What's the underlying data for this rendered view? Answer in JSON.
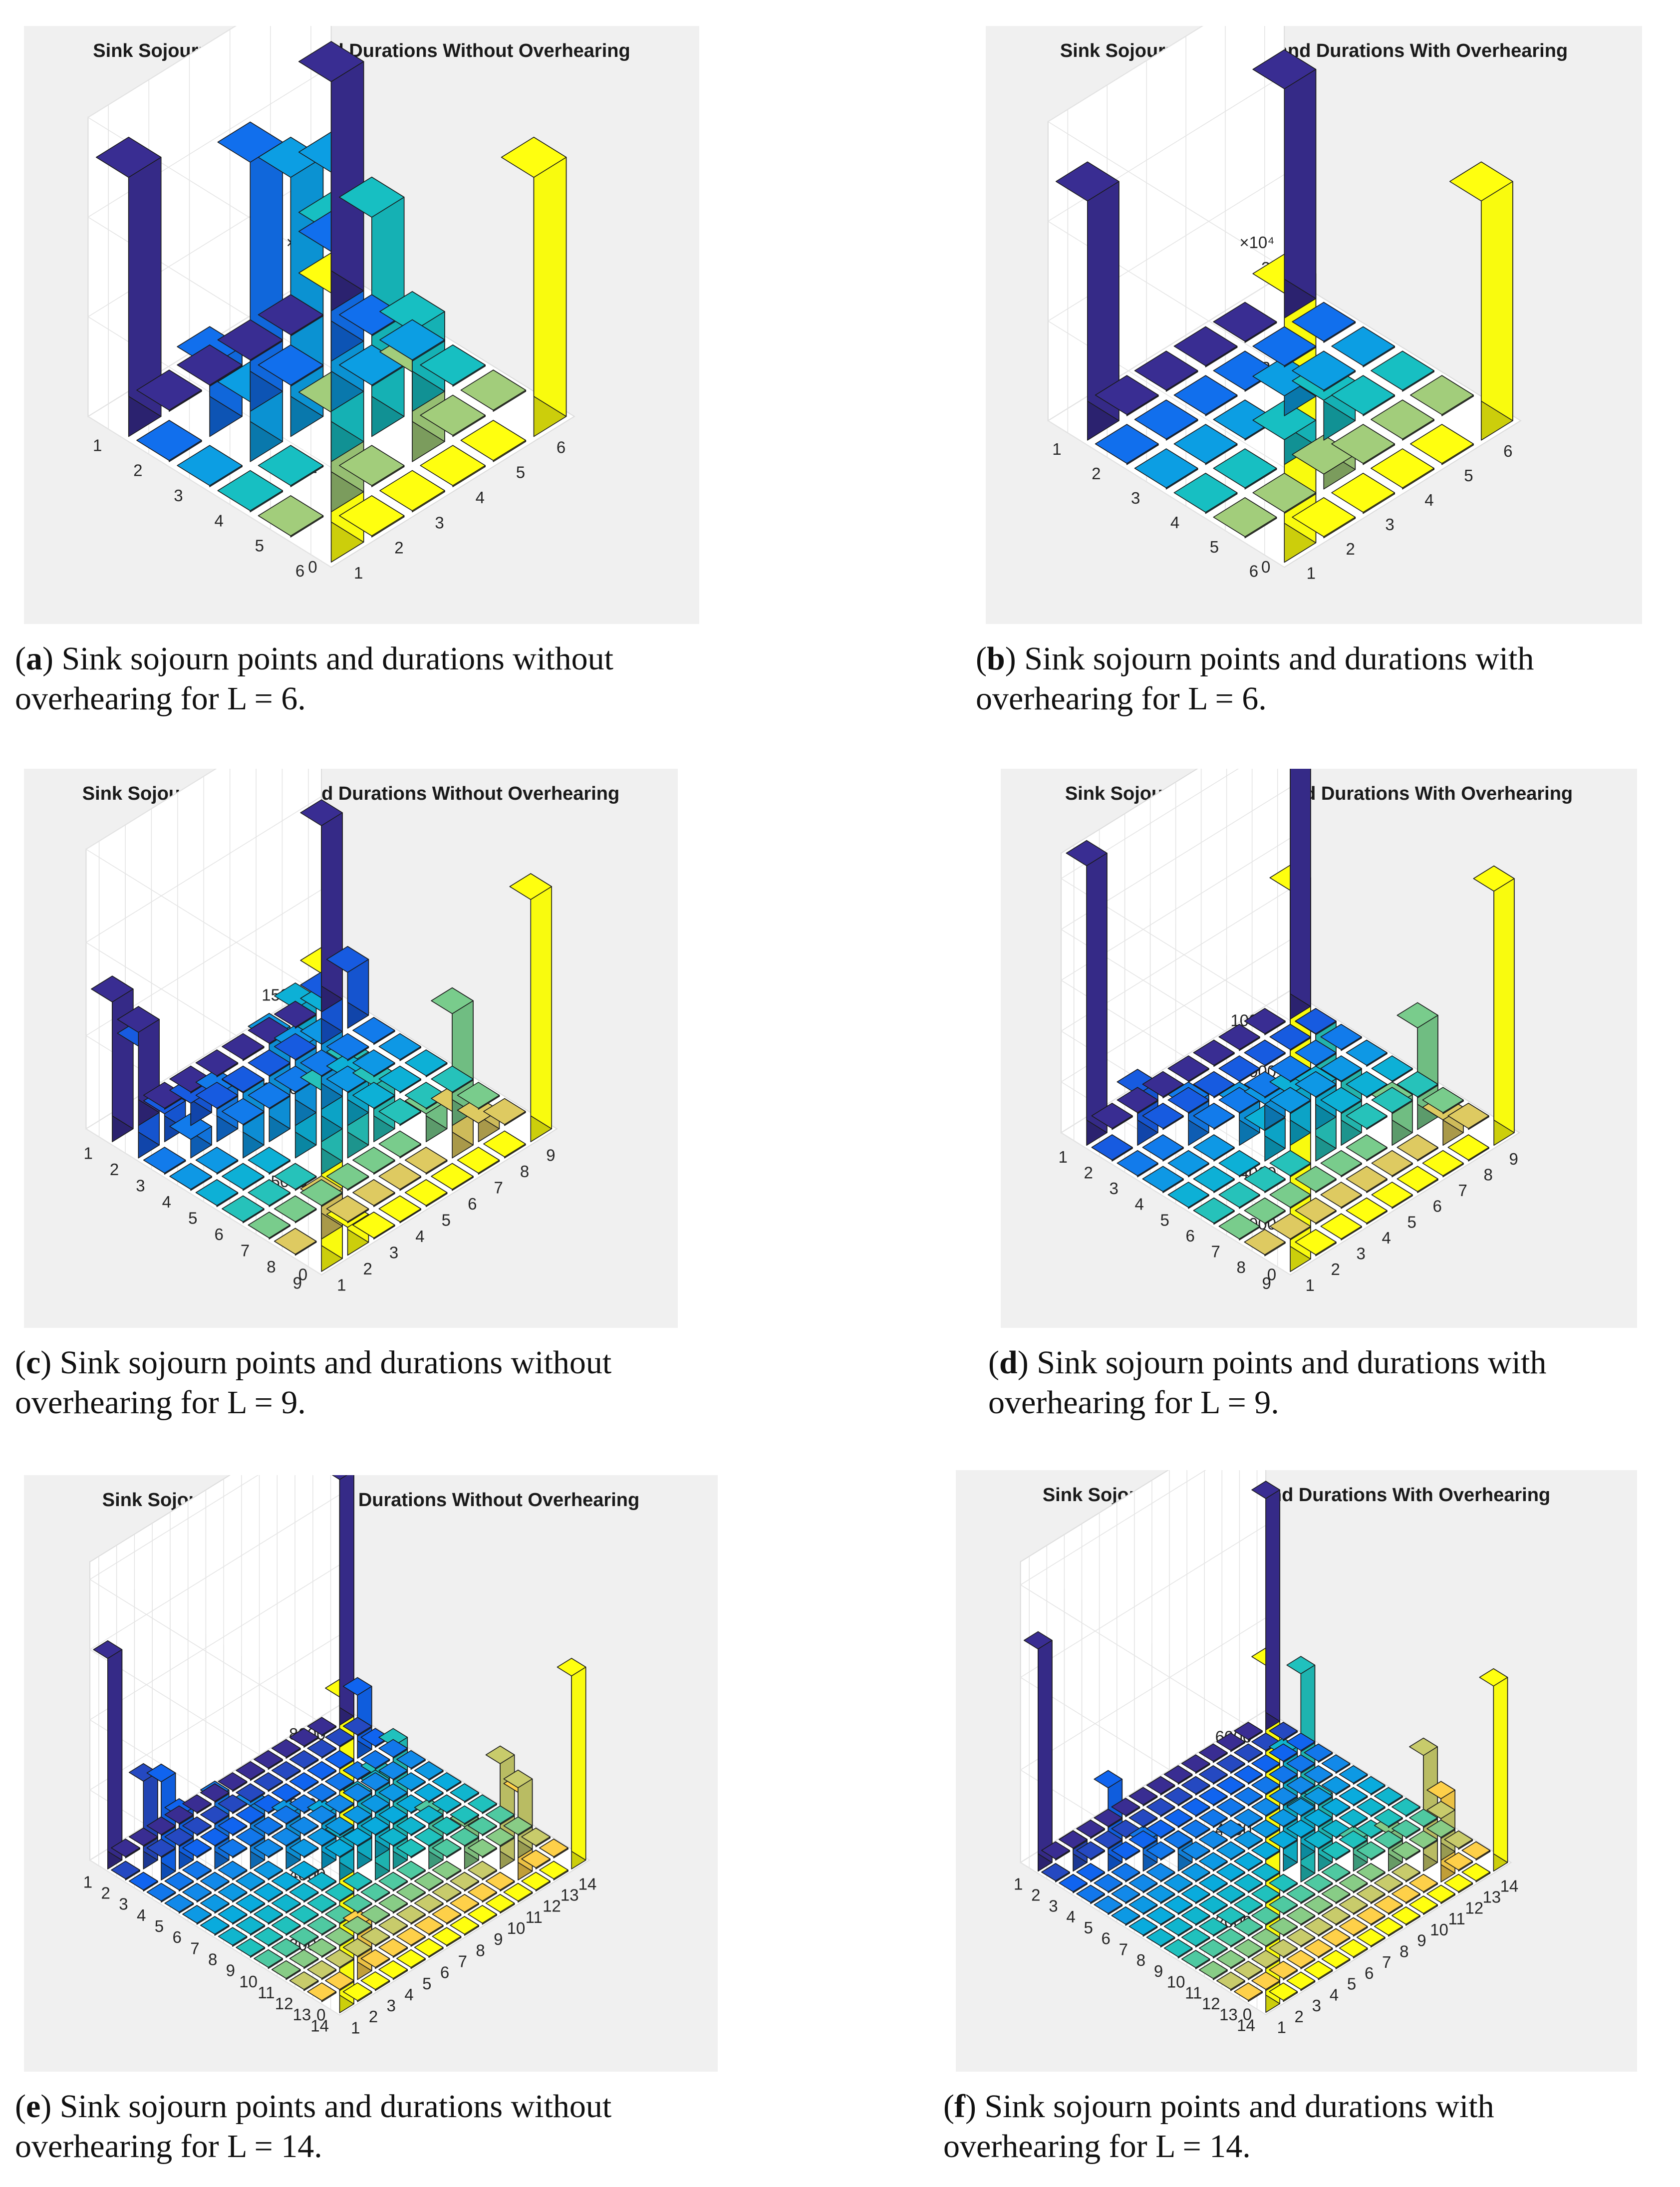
{
  "chart_data": [
    {
      "panel": "a",
      "type": "bar3d",
      "title": "Sink Sojourn Locations and Durations Without Overhearing",
      "caption_letter": "a",
      "caption": "Sink sojourn points and durations without overhearing for L = 6.",
      "L": 6,
      "zmax": 30000,
      "zticks": [
        0,
        10000,
        20000,
        30000
      ],
      "zticklabels": [
        "0",
        "1",
        "2",
        "3"
      ],
      "zexponent": "×10⁴",
      "xticks": [
        "1",
        "2",
        "3",
        "4",
        "5",
        "6"
      ],
      "yticks": [
        "1",
        "2",
        "3",
        "4",
        "5",
        "6"
      ],
      "nonzero": [
        [
          1,
          1,
          26000
        ],
        [
          1,
          6,
          27000
        ],
        [
          6,
          6,
          26000
        ],
        [
          6,
          1,
          23000
        ],
        [
          2,
          2,
          7000
        ],
        [
          2,
          3,
          6000
        ],
        [
          3,
          2,
          25000
        ],
        [
          3,
          3,
          26000
        ],
        [
          2,
          5,
          10000
        ],
        [
          5,
          2,
          11000
        ],
        [
          4,
          4,
          22000
        ],
        [
          4,
          3,
          24000
        ],
        [
          3,
          4,
          23000
        ],
        [
          4,
          5,
          9000
        ],
        [
          5,
          4,
          8000
        ]
      ]
    },
    {
      "panel": "b",
      "type": "bar3d",
      "title": "Sink Sojourn Locations and Durations With Overhearing",
      "caption_letter": "b",
      "caption": "Sink sojourn points and durations with overhearing for L = 6.",
      "L": 6,
      "zmax": 30000,
      "zticks": [
        0,
        10000,
        20000,
        30000
      ],
      "zticklabels": [
        "0",
        "1",
        "2",
        "3"
      ],
      "zexponent": "×10⁴",
      "xticks": [
        "1",
        "2",
        "3",
        "4",
        "5",
        "6"
      ],
      "yticks": [
        "1",
        "2",
        "3",
        "4",
        "5",
        "6"
      ],
      "nonzero": [
        [
          1,
          1,
          24000
        ],
        [
          1,
          6,
          27000
        ],
        [
          6,
          6,
          24000
        ],
        [
          6,
          1,
          23000
        ],
        [
          3,
          4,
          2500
        ],
        [
          4,
          4,
          4000
        ],
        [
          4,
          3,
          2000
        ],
        [
          3,
          5,
          1500
        ]
      ]
    },
    {
      "panel": "c",
      "type": "bar3d",
      "title": "Sink Sojourn Locations and Durations Without Overhearing",
      "caption_letter": "c",
      "caption": "Sink sojourn points and durations without overhearing for L = 9.",
      "L": 9,
      "zmax": 15000,
      "zticks": [
        0,
        5000,
        10000,
        15000
      ],
      "zticklabels": [
        "0",
        "5000",
        "10000",
        "15000"
      ],
      "zexponent": "",
      "xticks": [
        "1",
        "2",
        "3",
        "4",
        "5",
        "6",
        "7",
        "8",
        "9"
      ],
      "yticks": [
        "1",
        "2",
        "3",
        "4",
        "5",
        "6",
        "7",
        "8",
        "9"
      ],
      "nonzero": [
        [
          1,
          1,
          7500
        ],
        [
          1,
          2,
          6000
        ],
        [
          2,
          1,
          5000
        ],
        [
          1,
          9,
          16000
        ],
        [
          9,
          9,
          13000
        ],
        [
          9,
          1,
          10000
        ],
        [
          2,
          2,
          1500
        ],
        [
          3,
          3,
          2500
        ],
        [
          3,
          4,
          3500
        ],
        [
          4,
          4,
          5500
        ],
        [
          4,
          5,
          8000
        ],
        [
          5,
          5,
          7000
        ],
        [
          5,
          6,
          5000
        ],
        [
          6,
          6,
          3000
        ],
        [
          4,
          6,
          4500
        ],
        [
          6,
          4,
          3500
        ],
        [
          7,
          7,
          1500
        ],
        [
          8,
          8,
          1000
        ],
        [
          6,
          5,
          2500
        ],
        [
          5,
          4,
          4000
        ],
        [
          8,
          7,
          6000
        ],
        [
          7,
          8,
          2500
        ],
        [
          2,
          3,
          1000
        ],
        [
          3,
          2,
          1200
        ],
        [
          8,
          2,
          2500
        ],
        [
          2,
          8,
          2000
        ],
        [
          9,
          2,
          3000
        ],
        [
          2,
          9,
          1500
        ]
      ]
    },
    {
      "panel": "d",
      "type": "bar3d",
      "title": "Sink Sojourn Locations and Durations With Overhearing",
      "caption_letter": "d",
      "caption": "Sink sojourn points and durations with overhearing for L = 9.",
      "L": 9,
      "zmax": 11000,
      "zticks": [
        0,
        2000,
        4000,
        6000,
        8000,
        10000
      ],
      "zticklabels": [
        "0",
        "2000",
        "4000",
        "6000",
        "8000",
        "10000"
      ],
      "zexponent": "",
      "xticks": [
        "1",
        "2",
        "3",
        "4",
        "5",
        "6",
        "7",
        "8",
        "9"
      ],
      "yticks": [
        "1",
        "2",
        "3",
        "4",
        "5",
        "6",
        "7",
        "8",
        "9"
      ],
      "nonzero": [
        [
          1,
          1,
          11000
        ],
        [
          1,
          9,
          15000
        ],
        [
          9,
          9,
          10000
        ],
        [
          9,
          1,
          11000
        ],
        [
          2,
          2,
          2000
        ],
        [
          3,
          3,
          1500
        ],
        [
          4,
          4,
          1500
        ],
        [
          5,
          5,
          2000
        ],
        [
          5,
          6,
          5000
        ],
        [
          6,
          6,
          2500
        ],
        [
          6,
          5,
          1500
        ],
        [
          7,
          7,
          1500
        ],
        [
          8,
          8,
          1000
        ],
        [
          8,
          7,
          4000
        ],
        [
          4,
          5,
          1200
        ],
        [
          5,
          4,
          1000
        ]
      ]
    },
    {
      "panel": "e",
      "type": "bar3d",
      "title": "Sink Sojourn Locations and Durations Without Overhearing",
      "caption_letter": "e",
      "caption": "Sink sojourn points and durations without overhearing for L = 14.",
      "L": 14,
      "zmax": 8500,
      "zticks": [
        0,
        2000,
        4000,
        6000,
        8000
      ],
      "zticklabels": [
        "0",
        "2000",
        "4000",
        "6000",
        "8000"
      ],
      "zexponent": "",
      "xticks": [
        "1",
        "2",
        "3",
        "4",
        "5",
        "6",
        "7",
        "8",
        "9",
        "10",
        "11",
        "12",
        "13",
        "14"
      ],
      "yticks": [
        "1",
        "2",
        "3",
        "4",
        "5",
        "6",
        "7",
        "8",
        "9",
        "10",
        "11",
        "12",
        "13",
        "14"
      ],
      "nonzero": [
        [
          1,
          1,
          6000
        ],
        [
          1,
          14,
          9000
        ],
        [
          14,
          14,
          5500
        ],
        [
          14,
          1,
          7000
        ],
        [
          2,
          2,
          2500
        ],
        [
          2,
          3,
          2800
        ],
        [
          3,
          3,
          1500
        ],
        [
          4,
          4,
          2000
        ],
        [
          5,
          5,
          1800
        ],
        [
          6,
          6,
          1500
        ],
        [
          7,
          7,
          1500
        ],
        [
          8,
          8,
          2000
        ],
        [
          8,
          9,
          3000
        ],
        [
          9,
          9,
          3500
        ],
        [
          9,
          8,
          2000
        ],
        [
          10,
          10,
          1500
        ],
        [
          11,
          11,
          1200
        ],
        [
          12,
          12,
          3000
        ],
        [
          12,
          13,
          2500
        ],
        [
          13,
          12,
          2000
        ],
        [
          7,
          8,
          1200
        ],
        [
          3,
          13,
          1500
        ],
        [
          13,
          3,
          1800
        ]
      ]
    },
    {
      "panel": "f",
      "type": "bar3d",
      "title": "Sink Sojourn Locations and Durations With Overhearing",
      "caption_letter": "f",
      "caption": "Sink sojourn points and durations with overhearing for L = 14.",
      "L": 14,
      "zmax": 6500,
      "zticks": [
        0,
        2000,
        4000,
        6000
      ],
      "zticklabels": [
        "0",
        "2000",
        "4000",
        "6000"
      ],
      "zexponent": "",
      "xticks": [
        "1",
        "2",
        "3",
        "4",
        "5",
        "6",
        "7",
        "8",
        "9",
        "10",
        "11",
        "12",
        "13",
        "14"
      ],
      "yticks": [
        "1",
        "2",
        "3",
        "4",
        "5",
        "6",
        "7",
        "8",
        "9",
        "10",
        "11",
        "12",
        "13",
        "14"
      ],
      "nonzero": [
        [
          1,
          1,
          4800
        ],
        [
          1,
          14,
          7500
        ],
        [
          14,
          14,
          4000
        ],
        [
          14,
          1,
          5000
        ],
        [
          2,
          2,
          500
        ],
        [
          3,
          3,
          1800
        ],
        [
          4,
          4,
          600
        ],
        [
          5,
          5,
          500
        ],
        [
          8,
          8,
          2500
        ],
        [
          8,
          9,
          4500
        ],
        [
          9,
          9,
          1500
        ],
        [
          9,
          8,
          1000
        ],
        [
          10,
          10,
          600
        ],
        [
          12,
          12,
          2500
        ],
        [
          12,
          13,
          1800
        ],
        [
          11,
          11,
          800
        ],
        [
          13,
          12,
          900
        ]
      ]
    }
  ]
}
